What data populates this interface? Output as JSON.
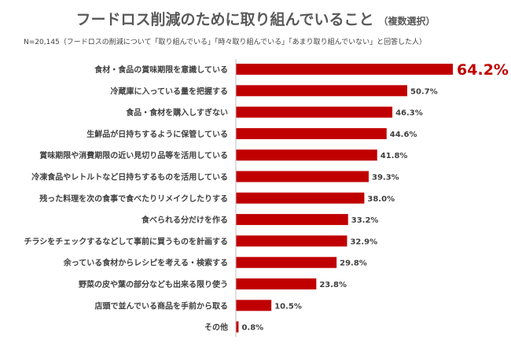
{
  "header": {
    "title": "フードロス削減のために取り組んでいること",
    "subtitle": "（複数選択）",
    "note": "N=20,145（フードロスの削減について「取り組んでいる」「時々取り組んでいる」「あまり取り組んでいない」と回答した人）"
  },
  "colors": {
    "bar": "#c00000",
    "axis": "#bfbfbf",
    "label": "#404040",
    "highlight": "#c00000"
  },
  "chart_data": {
    "type": "bar",
    "orientation": "horizontal",
    "title": "フードロス削減のために取り組んでいること",
    "unit": "%",
    "categories": [
      "食材・食品の賞味期限を意識している",
      "冷蔵庫に入っている量を把握する",
      "食品・食材を購入しすぎない",
      "生鮮品が日持ちするように保管している",
      "賞味期限や消費期限の近い見切り品等を活用している",
      "冷凍食品やレトルトなど日持ちするものを活用している",
      "残った料理を次の食事で食べたりリメイクしたりする",
      "食べられる分だけを作る",
      "チラシをチェックするなどして事前に買うものを計画する",
      "余っている食材からレシピを考える・検索する",
      "野菜の皮や葉の部分なども出来る限り使う",
      "店頭で並んでいる商品を手前から取る",
      "その他"
    ],
    "values": [
      64.2,
      50.7,
      46.3,
      44.6,
      41.8,
      39.3,
      38.0,
      33.2,
      32.9,
      29.8,
      23.8,
      10.5,
      0.8
    ],
    "value_labels": [
      "64.2%",
      "50.7%",
      "46.3%",
      "44.6%",
      "41.8%",
      "39.3%",
      "38.0%",
      "33.2%",
      "32.9%",
      "29.8%",
      "23.8%",
      "10.5%",
      "0.8%"
    ],
    "highlight_index": 0,
    "xlim": [
      0,
      70
    ],
    "grid": false,
    "legend": "none"
  }
}
